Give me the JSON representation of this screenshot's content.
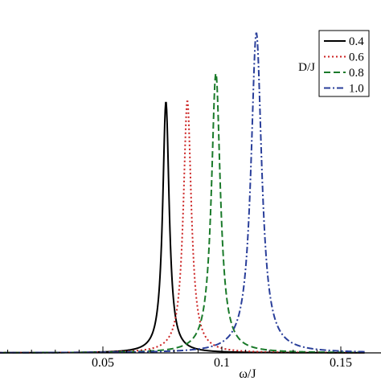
{
  "chart_data": {
    "type": "line",
    "xlabel": "ω/J",
    "ylabel": "",
    "xlim": [
      0.0,
      0.16
    ],
    "ylim": [
      0,
      1.0
    ],
    "x_ticks": [
      0.05,
      0.1,
      0.15
    ],
    "x_tick_labels": [
      "0.05",
      "0.1",
      "0.15"
    ],
    "grid": false,
    "legend": {
      "title": "D/J",
      "placement": "top-right"
    },
    "series": [
      {
        "name": "0.4",
        "color": "#000000",
        "dash": "solid",
        "peak_x": 0.0765,
        "peak_y": 0.785,
        "width": 0.00165
      },
      {
        "name": "0.6",
        "color": "#cc2222",
        "dash": "dotted",
        "peak_x": 0.0855,
        "peak_y": 0.788,
        "width": 0.002
      },
      {
        "name": "0.8",
        "color": "#1a7a2a",
        "dash": "dashed",
        "peak_x": 0.0975,
        "peak_y": 0.874,
        "width": 0.00225
      },
      {
        "name": "1.0",
        "color": "#2a3f9a",
        "dash": "dashdot",
        "peak_x": 0.1145,
        "peak_y": 1.0,
        "width": 0.0027
      }
    ]
  }
}
